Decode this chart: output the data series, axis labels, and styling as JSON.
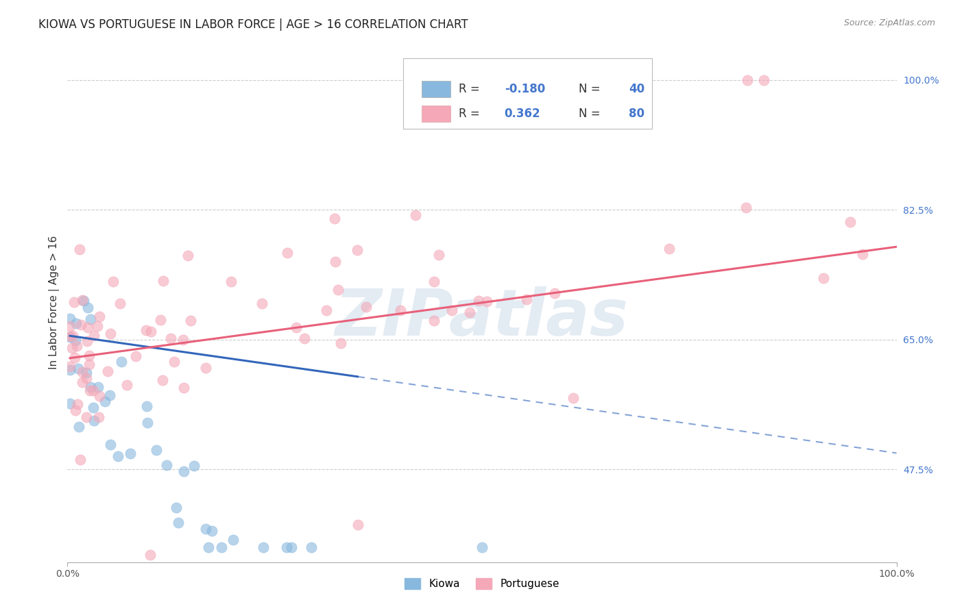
{
  "title": "KIOWA VS PORTUGUESE IN LABOR FORCE | AGE > 16 CORRELATION CHART",
  "source": "Source: ZipAtlas.com",
  "ylabel": "In Labor Force | Age > 16",
  "xlim": [
    0.0,
    1.0
  ],
  "ylim": [
    0.35,
    1.05
  ],
  "x_tick_labels": [
    "0.0%",
    "100.0%"
  ],
  "y_tick_labels_right": [
    "100.0%",
    "82.5%",
    "65.0%",
    "47.5%"
  ],
  "y_tick_values_right": [
    1.0,
    0.825,
    0.65,
    0.475
  ],
  "kiowa_color": "#89b8de",
  "portuguese_color": "#f4a8b8",
  "kiowa_line_color": "#3366bb",
  "portuguese_line_color": "#e8607a",
  "kiowa_R": -0.18,
  "kiowa_N": 40,
  "portuguese_R": 0.362,
  "portuguese_N": 80,
  "watermark_text": "ZIPatlas",
  "watermark_color": "#c8d8e8",
  "grid_color": "#cccccc",
  "title_color": "#222222",
  "source_color": "#888888",
  "tick_color_right": "#4477cc",
  "tick_color_x": "#555555"
}
